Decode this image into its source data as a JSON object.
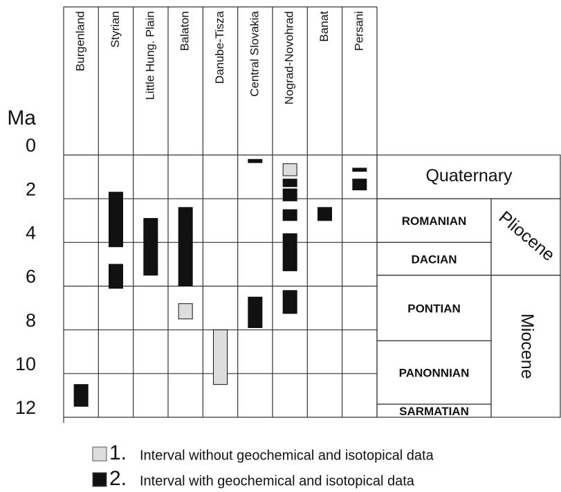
{
  "chart_data": {
    "type": "range",
    "ylabel": "Ma",
    "ylim": [
      0,
      12
    ],
    "yticks": [
      0,
      2,
      4,
      6,
      8,
      10,
      12
    ],
    "grid": true,
    "categories": [
      "Burgenland",
      "Styrian",
      "Little Hung. Plain",
      "Balaton",
      "Danube-Tisza",
      "Central Slovakia",
      "Nograd-Novohrad",
      "Banat",
      "Persani"
    ],
    "series": [
      {
        "number": "1.",
        "name": "Interval without geochemical and isotopical data",
        "color": "#dddddd",
        "values": [
          [],
          [],
          [],
          [
            [
              6.8,
              7.5
            ]
          ],
          [
            [
              8.0,
              10.5
            ]
          ],
          [],
          [
            [
              0.4,
              0.95
            ]
          ],
          [],
          []
        ]
      },
      {
        "number": "2.",
        "name": "Interval with geochemical and isotopical data",
        "color": "#111111",
        "values": [
          [
            [
              10.5,
              11.5
            ]
          ],
          [
            [
              1.7,
              4.2
            ],
            [
              5.0,
              6.1
            ]
          ],
          [
            [
              2.9,
              5.5
            ]
          ],
          [
            [
              2.4,
              6.0
            ]
          ],
          [],
          [
            [
              0.2,
              0.35
            ],
            [
              6.5,
              7.9
            ]
          ],
          [
            [
              1.1,
              1.45
            ],
            [
              1.55,
              2.1
            ],
            [
              2.5,
              3.0
            ],
            [
              3.6,
              5.3
            ],
            [
              6.2,
              7.25
            ]
          ],
          [
            [
              2.4,
              3.0
            ]
          ],
          [
            [
              0.6,
              0.75
            ],
            [
              1.1,
              1.6
            ]
          ]
        ]
      }
    ],
    "periods": [
      {
        "name": "Quaternary",
        "start": 0,
        "end": 2
      },
      {
        "name": "Pliocene",
        "start": 2,
        "end": 5.5
      },
      {
        "name": "Miocene",
        "start": 5.5,
        "end": 12
      }
    ],
    "stages": [
      {
        "name": "ROMANIAN",
        "start": 2,
        "end": 4
      },
      {
        "name": "DACIAN",
        "start": 4,
        "end": 5.5
      },
      {
        "name": "PONTIAN",
        "start": 5.5,
        "end": 8.5
      },
      {
        "name": "PANONNIAN",
        "start": 8.5,
        "end": 11.4
      },
      {
        "name": "SARMATIAN",
        "start": 11.4,
        "end": 12
      }
    ]
  }
}
